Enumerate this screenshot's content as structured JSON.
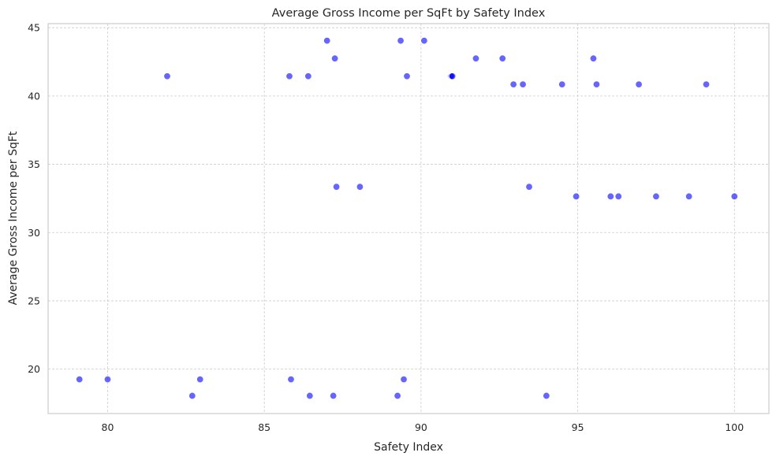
{
  "chart_data": {
    "type": "scatter",
    "title": "Average Gross Income per SqFt by Safety Index",
    "xlabel": "Safety Index",
    "ylabel": "Average Gross Income per SqFt",
    "xlim": [
      78.1,
      101.1
    ],
    "ylim": [
      16.75,
      45.3
    ],
    "xticks": [
      80,
      85,
      90,
      95,
      100
    ],
    "yticks": [
      20,
      25,
      30,
      35,
      40,
      45
    ],
    "grid": true,
    "point_color": "#0000ff",
    "points": [
      {
        "x": 79.1,
        "y": 19.25
      },
      {
        "x": 80.0,
        "y": 19.25
      },
      {
        "x": 82.7,
        "y": 18.05
      },
      {
        "x": 82.95,
        "y": 19.25
      },
      {
        "x": 85.85,
        "y": 19.25
      },
      {
        "x": 86.45,
        "y": 18.05
      },
      {
        "x": 87.2,
        "y": 18.05
      },
      {
        "x": 89.25,
        "y": 18.05
      },
      {
        "x": 89.45,
        "y": 19.25
      },
      {
        "x": 94.0,
        "y": 18.05
      },
      {
        "x": 81.9,
        "y": 41.45
      },
      {
        "x": 85.8,
        "y": 41.45
      },
      {
        "x": 86.4,
        "y": 41.45
      },
      {
        "x": 87.0,
        "y": 44.05
      },
      {
        "x": 87.25,
        "y": 42.75
      },
      {
        "x": 87.3,
        "y": 33.35
      },
      {
        "x": 88.05,
        "y": 33.35
      },
      {
        "x": 89.35,
        "y": 44.05
      },
      {
        "x": 89.55,
        "y": 41.45
      },
      {
        "x": 90.1,
        "y": 44.05
      },
      {
        "x": 90.95,
        "y": 41.45
      },
      {
        "x": 90.97,
        "y": 41.45
      },
      {
        "x": 91.0,
        "y": 41.45
      },
      {
        "x": 91.75,
        "y": 42.75
      },
      {
        "x": 92.6,
        "y": 42.75
      },
      {
        "x": 92.95,
        "y": 40.85
      },
      {
        "x": 93.25,
        "y": 40.85
      },
      {
        "x": 93.45,
        "y": 33.35
      },
      {
        "x": 94.5,
        "y": 40.85
      },
      {
        "x": 94.95,
        "y": 32.65
      },
      {
        "x": 95.5,
        "y": 42.75
      },
      {
        "x": 95.6,
        "y": 40.85
      },
      {
        "x": 96.05,
        "y": 32.65
      },
      {
        "x": 96.3,
        "y": 32.65
      },
      {
        "x": 96.95,
        "y": 40.85
      },
      {
        "x": 97.5,
        "y": 32.65
      },
      {
        "x": 98.55,
        "y": 32.65
      },
      {
        "x": 99.1,
        "y": 40.85
      },
      {
        "x": 100.0,
        "y": 32.65
      }
    ]
  }
}
